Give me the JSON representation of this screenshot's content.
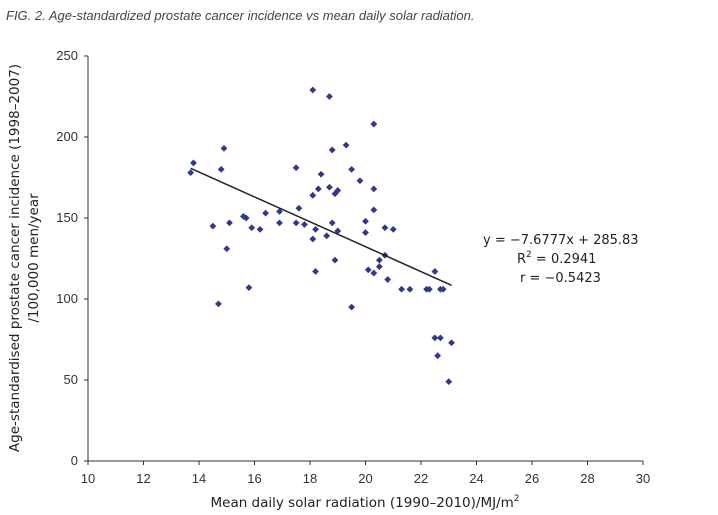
{
  "caption": "FIG. 2. Age-standardized prostate cancer incidence vs mean daily solar radiation.",
  "chart_data": {
    "type": "scatter",
    "title": "FIG. 2. Age-standardized prostate cancer incidence vs mean daily solar radiation.",
    "xlabel_main": "Mean daily solar radiation (1990–2010)/MJ/m",
    "xlabel_sup": "2",
    "ylabel_line1": "Age-standardised prostate cancer incidence (1998–2007)",
    "ylabel_line2": "/100,000 men/year",
    "xlim": [
      10,
      30
    ],
    "ylim": [
      0,
      250
    ],
    "x_ticks": [
      10,
      12,
      14,
      16,
      18,
      20,
      22,
      24,
      26,
      28,
      30
    ],
    "y_ticks": [
      0,
      50,
      100,
      150,
      200,
      250
    ],
    "marker_color": "#2e3a8c",
    "line_color": "#222222",
    "trendline": {
      "slope": -7.6777,
      "intercept": 285.83,
      "x_start": 13.7,
      "x_end": 23.1
    },
    "annotations": {
      "equation": "y = −7.6777x + 285.83",
      "r2_prefix": "R",
      "r2_sup": "2",
      "r2_value": " = 0.2941",
      "r": "r = −0.5423"
    },
    "points": [
      [
        13.7,
        178
      ],
      [
        13.8,
        184
      ],
      [
        14.5,
        145
      ],
      [
        14.7,
        97
      ],
      [
        14.8,
        180
      ],
      [
        14.9,
        193
      ],
      [
        15.0,
        131
      ],
      [
        15.1,
        147
      ],
      [
        15.6,
        151
      ],
      [
        15.7,
        150
      ],
      [
        15.8,
        107
      ],
      [
        15.9,
        144
      ],
      [
        16.2,
        143
      ],
      [
        16.4,
        153
      ],
      [
        16.9,
        147
      ],
      [
        16.9,
        154
      ],
      [
        17.5,
        147
      ],
      [
        17.5,
        181
      ],
      [
        17.6,
        156
      ],
      [
        17.8,
        146
      ],
      [
        18.1,
        229
      ],
      [
        18.1,
        164
      ],
      [
        18.1,
        137
      ],
      [
        18.2,
        143
      ],
      [
        18.2,
        117
      ],
      [
        18.3,
        168
      ],
      [
        18.4,
        177
      ],
      [
        18.6,
        139
      ],
      [
        18.7,
        225
      ],
      [
        18.7,
        169
      ],
      [
        18.8,
        192
      ],
      [
        18.8,
        147
      ],
      [
        18.9,
        124
      ],
      [
        18.9,
        165
      ],
      [
        19.0,
        142
      ],
      [
        19.0,
        167
      ],
      [
        19.3,
        195
      ],
      [
        19.5,
        180
      ],
      [
        19.5,
        95
      ],
      [
        19.8,
        173
      ],
      [
        20.0,
        148
      ],
      [
        20.0,
        141
      ],
      [
        20.1,
        118
      ],
      [
        20.3,
        208
      ],
      [
        20.3,
        168
      ],
      [
        20.3,
        155
      ],
      [
        20.3,
        116
      ],
      [
        20.5,
        120
      ],
      [
        20.5,
        124
      ],
      [
        20.7,
        144
      ],
      [
        20.7,
        127
      ],
      [
        20.8,
        112
      ],
      [
        21.0,
        143
      ],
      [
        21.3,
        106
      ],
      [
        21.6,
        106
      ],
      [
        22.2,
        106
      ],
      [
        22.3,
        106
      ],
      [
        22.5,
        117
      ],
      [
        22.5,
        76
      ],
      [
        22.6,
        65
      ],
      [
        22.7,
        76
      ],
      [
        22.7,
        106
      ],
      [
        22.8,
        106
      ],
      [
        23.0,
        49
      ],
      [
        23.1,
        73
      ]
    ]
  }
}
